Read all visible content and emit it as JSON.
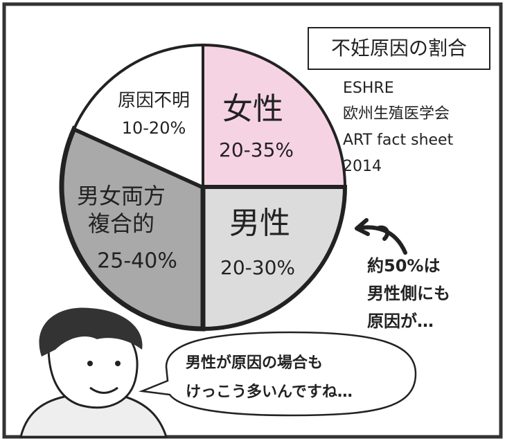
{
  "title": "不妊原因の割合",
  "source": [
    "ESHRE",
    "欧州生殖医学会",
    "ART fact sheet",
    "2014"
  ],
  "slices": [
    {
      "label": [
        "女性"
      ],
      "range": "20-35%"
    },
    {
      "label": [
        "男性"
      ],
      "range": "20-30%"
    },
    {
      "label": [
        "男女両方",
        "複合的"
      ],
      "range": "25-40%"
    },
    {
      "label": [
        "原因不明"
      ],
      "range": "10-20%"
    }
  ],
  "annotation": [
    "約50%は",
    "男性側にも",
    "原因が…"
  ],
  "speech": [
    "男性が原因の場合も",
    "けっこう多いんですね…"
  ]
}
